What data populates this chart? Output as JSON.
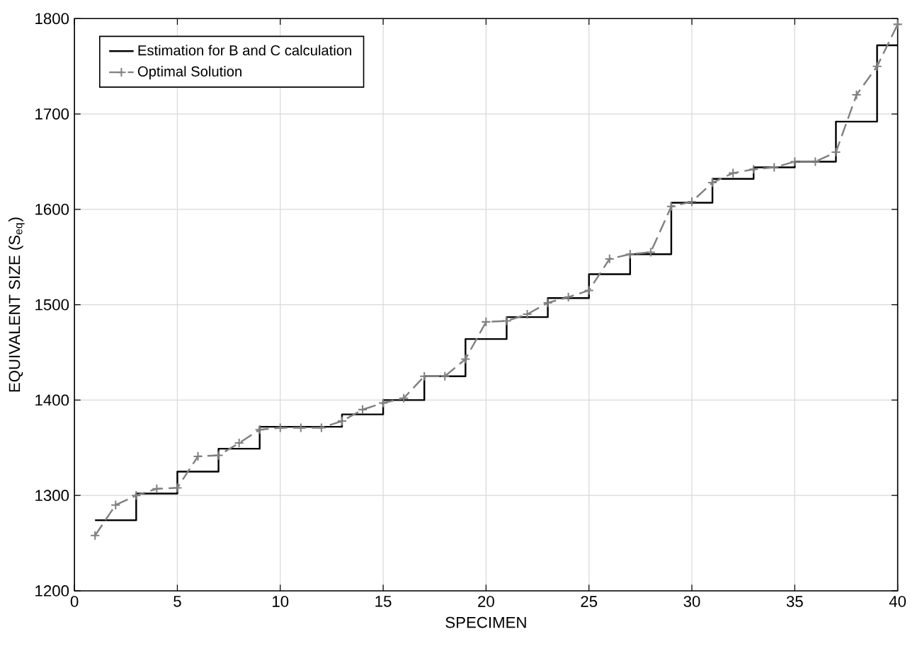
{
  "chart_data": {
    "type": "line",
    "xlabel": "SPECIMEN",
    "ylabel": "EQUIVALENT SIZE (S$_{eq}$)",
    "xlim": [
      0,
      40
    ],
    "ylim": [
      1200,
      1800
    ],
    "xticks": [
      0,
      5,
      10,
      15,
      20,
      25,
      30,
      35,
      40
    ],
    "yticks": [
      1200,
      1300,
      1400,
      1500,
      1600,
      1700,
      1800
    ],
    "grid": true,
    "legend": "top left",
    "series": [
      {
        "name": "Estimation for B and C calculation",
        "type": "step",
        "color": "#000000",
        "line_style": "solid",
        "marker": "none",
        "x": [
          1,
          3,
          5,
          7,
          9,
          13,
          15,
          17,
          19,
          21,
          23,
          25,
          27,
          29,
          31,
          33,
          35,
          37,
          39,
          40
        ],
        "values": [
          1274,
          1302,
          1325,
          1349,
          1372,
          1385,
          1400,
          1425,
          1464,
          1487,
          1507,
          1532,
          1553,
          1607,
          1632,
          1644,
          1650,
          1692,
          1772,
          1772
        ]
      },
      {
        "name": "Optimal Solution",
        "color": "#808080",
        "line_style": "dashed",
        "marker": "cross",
        "x": [
          1,
          2,
          3,
          4,
          5,
          6,
          7,
          8,
          9,
          10,
          11,
          12,
          13,
          14,
          15,
          16,
          17,
          18,
          19,
          20,
          21,
          22,
          23,
          24,
          25,
          26,
          27,
          28,
          29,
          30,
          31,
          32,
          33,
          34,
          35,
          36,
          37,
          38,
          39,
          40
        ],
        "values": [
          1258,
          1290,
          1300,
          1307,
          1308,
          1341,
          1342,
          1355,
          1369,
          1371,
          1371,
          1371,
          1378,
          1390,
          1397,
          1402,
          1425,
          1425,
          1443,
          1482,
          1483,
          1490,
          1502,
          1508,
          1515,
          1548,
          1553,
          1555,
          1603,
          1608,
          1628,
          1638,
          1642,
          1644,
          1650,
          1650,
          1660,
          1720,
          1750,
          1794
        ]
      }
    ]
  }
}
